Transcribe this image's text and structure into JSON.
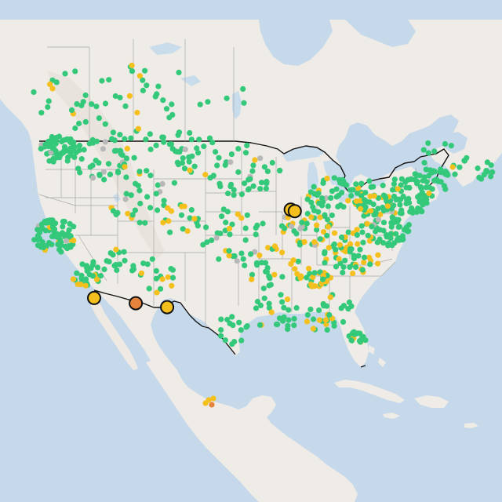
{
  "map": {
    "region": "United States",
    "basemap": "light",
    "colors": {
      "water": "#c6d9ea",
      "land": "#efebe6",
      "us_border": "#111111",
      "state_lines": "#a9a9a9",
      "green": "#34c97a",
      "yellow": "#f5c01d",
      "orange": "#e6833a",
      "gray": "#b8b8b8"
    },
    "large_markers": [
      {
        "name": "marker-chicago-1",
        "lon": -88.3,
        "lat": 41.9,
        "color": "yellow"
      },
      {
        "name": "marker-chicago-2",
        "lon": -87.7,
        "lat": 41.75,
        "color": "yellow"
      },
      {
        "name": "marker-san-diego",
        "lon": -117.1,
        "lat": 32.75,
        "color": "yellow"
      },
      {
        "name": "marker-tucson",
        "lon": -111.0,
        "lat": 32.2,
        "color": "orange"
      },
      {
        "name": "marker-el-paso",
        "lon": -106.4,
        "lat": 31.8,
        "color": "yellow"
      }
    ]
  }
}
